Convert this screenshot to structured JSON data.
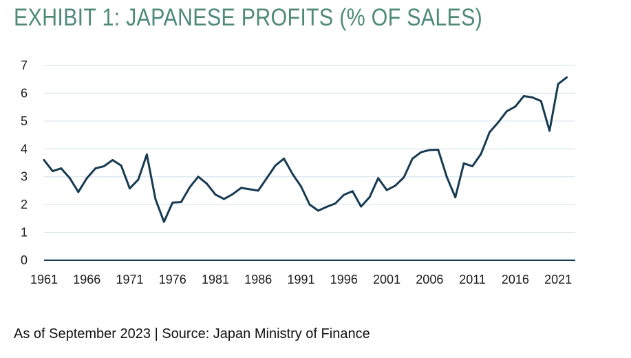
{
  "chart_data": {
    "type": "line",
    "title": "EXHIBIT 1: JAPANESE PROFITS (% OF SALES)",
    "xlabel": "",
    "ylabel": "",
    "xlim": [
      1961,
      2023
    ],
    "ylim": [
      0,
      7
    ],
    "grid": true,
    "yticks": [
      0,
      1,
      2,
      3,
      4,
      5,
      6,
      7
    ],
    "xticks": [
      1961,
      1966,
      1971,
      1976,
      1981,
      1986,
      1991,
      1996,
      2001,
      2006,
      2011,
      2016,
      2021
    ],
    "series": [
      {
        "name": "Japanese Profits (% of Sales)",
        "color": "#163a52",
        "x": [
          1961,
          1962,
          1963,
          1964,
          1965,
          1966,
          1967,
          1968,
          1969,
          1970,
          1971,
          1972,
          1973,
          1974,
          1975,
          1976,
          1977,
          1978,
          1979,
          1980,
          1981,
          1982,
          1983,
          1984,
          1985,
          1986,
          1987,
          1988,
          1989,
          1990,
          1991,
          1992,
          1993,
          1994,
          1995,
          1996,
          1997,
          1998,
          1999,
          2000,
          2001,
          2002,
          2003,
          2004,
          2005,
          2006,
          2007,
          2008,
          2009,
          2010,
          2011,
          2012,
          2013,
          2014,
          2015,
          2016,
          2017,
          2018,
          2019,
          2020,
          2021,
          2022
        ],
        "values": [
          3.6,
          3.2,
          3.3,
          2.95,
          2.45,
          2.95,
          3.3,
          3.38,
          3.6,
          3.4,
          2.58,
          2.9,
          3.8,
          2.2,
          1.38,
          2.07,
          2.09,
          2.62,
          3.0,
          2.75,
          2.36,
          2.2,
          2.37,
          2.6,
          2.55,
          2.5,
          2.95,
          3.4,
          3.65,
          3.1,
          2.65,
          2.0,
          1.78,
          1.92,
          2.04,
          2.35,
          2.48,
          1.93,
          2.27,
          2.95,
          2.52,
          2.68,
          2.98,
          3.65,
          3.88,
          3.96,
          3.97,
          3.0,
          2.26,
          3.48,
          3.38,
          3.82,
          4.6,
          4.95,
          5.35,
          5.52,
          5.9,
          5.85,
          5.72,
          4.65,
          6.33,
          6.57
        ]
      }
    ]
  },
  "footnote": "As of September 2023 | Source: Japan Ministry of Finance"
}
